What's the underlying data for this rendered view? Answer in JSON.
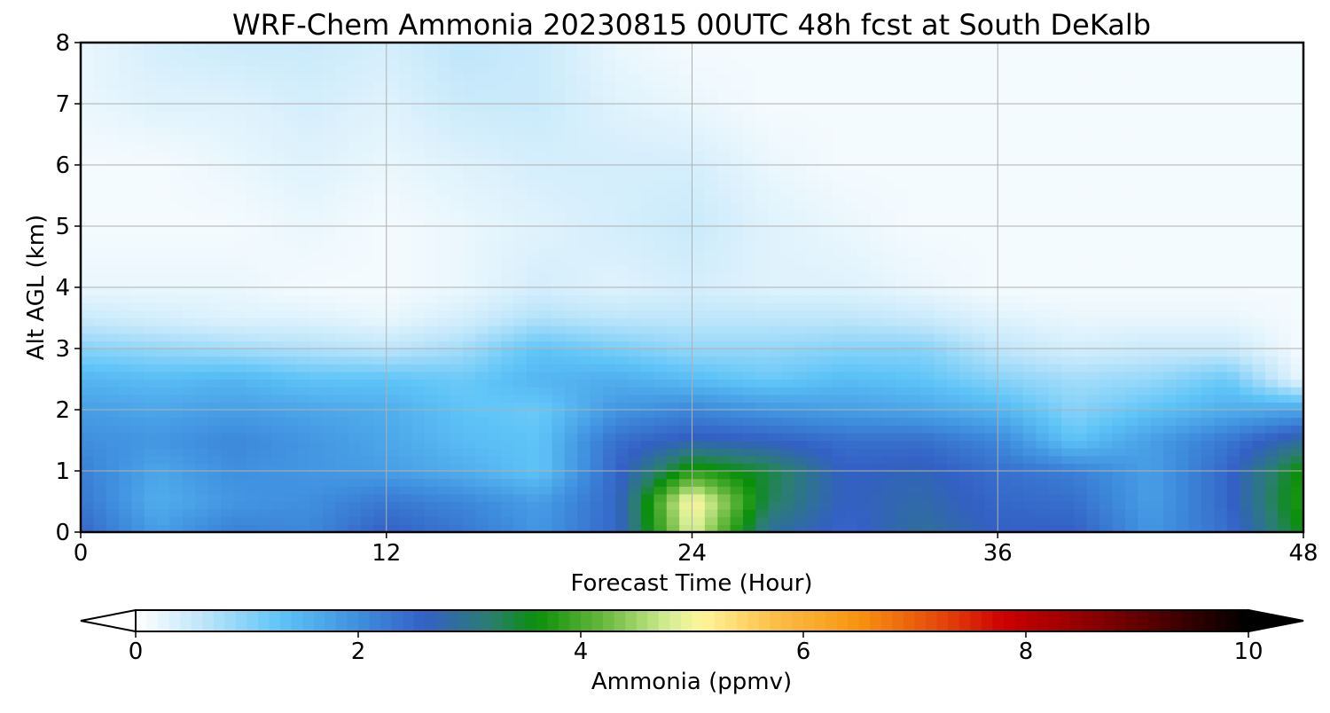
{
  "chart_data": {
    "type": "heatmap",
    "title": "WRF-Chem Ammonia  20230815 00UTC 48h fcst at South DeKalb",
    "xlabel": "Forecast Time (Hour)",
    "ylabel": "Alt AGL (km)",
    "xlim": [
      0,
      48
    ],
    "ylim": [
      0,
      8
    ],
    "x_ticks": [
      0,
      12,
      24,
      36,
      48
    ],
    "y_ticks": [
      0,
      1,
      2,
      3,
      4,
      5,
      6,
      7,
      8
    ],
    "grid": true,
    "x": [
      0,
      3,
      6,
      9,
      12,
      15,
      18,
      21,
      24,
      27,
      30,
      33,
      36,
      39,
      42,
      45,
      48
    ],
    "y": [
      0,
      0.5,
      1,
      1.5,
      2,
      2.5,
      3,
      3.5,
      4,
      5,
      6,
      7,
      8
    ],
    "z": [
      [
        2.5,
        1.8,
        2.2,
        2.1,
        2.6,
        2.3,
        1.9,
        2.5,
        4.9,
        2.9,
        2.5,
        2.9,
        2.6,
        2.6,
        1.9,
        2.4,
        3.6
      ],
      [
        2.3,
        1.6,
        1.9,
        2.0,
        2.3,
        2.1,
        1.8,
        2.5,
        5.2,
        3.3,
        2.6,
        2.8,
        2.5,
        2.4,
        1.8,
        2.5,
        3.8
      ],
      [
        2.2,
        1.7,
        2.0,
        1.9,
        1.8,
        1.6,
        1.3,
        2.5,
        3.8,
        3.4,
        2.6,
        2.7,
        2.4,
        2.2,
        1.8,
        2.5,
        3.7
      ],
      [
        2.0,
        1.9,
        2.1,
        1.9,
        1.7,
        1.4,
        1.3,
        2.4,
        2.7,
        2.6,
        2.4,
        2.4,
        2.1,
        1.3,
        1.8,
        2.3,
        2.9
      ],
      [
        1.8,
        1.7,
        1.8,
        1.7,
        1.6,
        1.3,
        1.2,
        1.9,
        2.1,
        1.9,
        1.8,
        1.7,
        1.5,
        1.0,
        1.3,
        1.6,
        1.7
      ],
      [
        1.5,
        1.4,
        1.5,
        1.3,
        1.3,
        1.2,
        1.5,
        1.6,
        1.4,
        1.2,
        1.4,
        1.3,
        1.0,
        0.8,
        0.9,
        1.2,
        0.2
      ],
      [
        1.0,
        0.9,
        0.8,
        0.7,
        0.6,
        0.8,
        1.3,
        1.1,
        0.9,
        0.9,
        1.0,
        1.0,
        0.6,
        0.4,
        0.5,
        0.5,
        0.1
      ],
      [
        0.5,
        0.4,
        0.3,
        0.3,
        0.2,
        0.4,
        0.7,
        0.6,
        0.6,
        0.6,
        0.6,
        0.5,
        0.3,
        0.2,
        0.2,
        0.2,
        0.1
      ],
      [
        0.2,
        0.2,
        0.2,
        0.1,
        0.1,
        0.2,
        0.4,
        0.3,
        0.4,
        0.3,
        0.3,
        0.2,
        0.1,
        0.1,
        0.1,
        0.1,
        0.1
      ],
      [
        0.1,
        0.1,
        0.1,
        0.2,
        0.1,
        0.2,
        0.3,
        0.4,
        0.5,
        0.3,
        0.2,
        0.1,
        0.1,
        0.1,
        0.1,
        0.1,
        0.1
      ],
      [
        0.1,
        0.1,
        0.2,
        0.3,
        0.2,
        0.3,
        0.4,
        0.4,
        0.4,
        0.2,
        0.1,
        0.1,
        0.1,
        0.1,
        0.1,
        0.1,
        0.1
      ],
      [
        0.2,
        0.3,
        0.3,
        0.4,
        0.3,
        0.5,
        0.5,
        0.3,
        0.2,
        0.1,
        0.1,
        0.1,
        0.1,
        0.1,
        0.1,
        0.1,
        0.1
      ],
      [
        0.2,
        0.4,
        0.5,
        0.5,
        0.4,
        0.6,
        0.5,
        0.2,
        0.1,
        0.1,
        0.1,
        0.1,
        0.1,
        0.1,
        0.1,
        0.1,
        0.1
      ]
    ],
    "colorbar": {
      "label": "Ammonia  (ppmv)",
      "min": 0,
      "max": 10,
      "ticks": [
        0,
        2,
        4,
        6,
        8,
        10
      ],
      "extend": "both",
      "stops": [
        {
          "v": 0,
          "c": "#ffffff"
        },
        {
          "v": 0.6,
          "c": "#bfe6fa"
        },
        {
          "v": 1.3,
          "c": "#5ec4f7"
        },
        {
          "v": 2.0,
          "c": "#3f8fde"
        },
        {
          "v": 2.6,
          "c": "#3360c4"
        },
        {
          "v": 3.2,
          "c": "#2a7f6e"
        },
        {
          "v": 3.6,
          "c": "#0a8f0a"
        },
        {
          "v": 4.2,
          "c": "#67b83d"
        },
        {
          "v": 4.8,
          "c": "#d6ee93"
        },
        {
          "v": 5.1,
          "c": "#fff59a"
        },
        {
          "v": 5.7,
          "c": "#fbc24b"
        },
        {
          "v": 6.5,
          "c": "#f7930f"
        },
        {
          "v": 7.3,
          "c": "#e3400a"
        },
        {
          "v": 7.8,
          "c": "#cc0000"
        },
        {
          "v": 8.6,
          "c": "#8a0000"
        },
        {
          "v": 10.0,
          "c": "#000000"
        }
      ]
    }
  }
}
